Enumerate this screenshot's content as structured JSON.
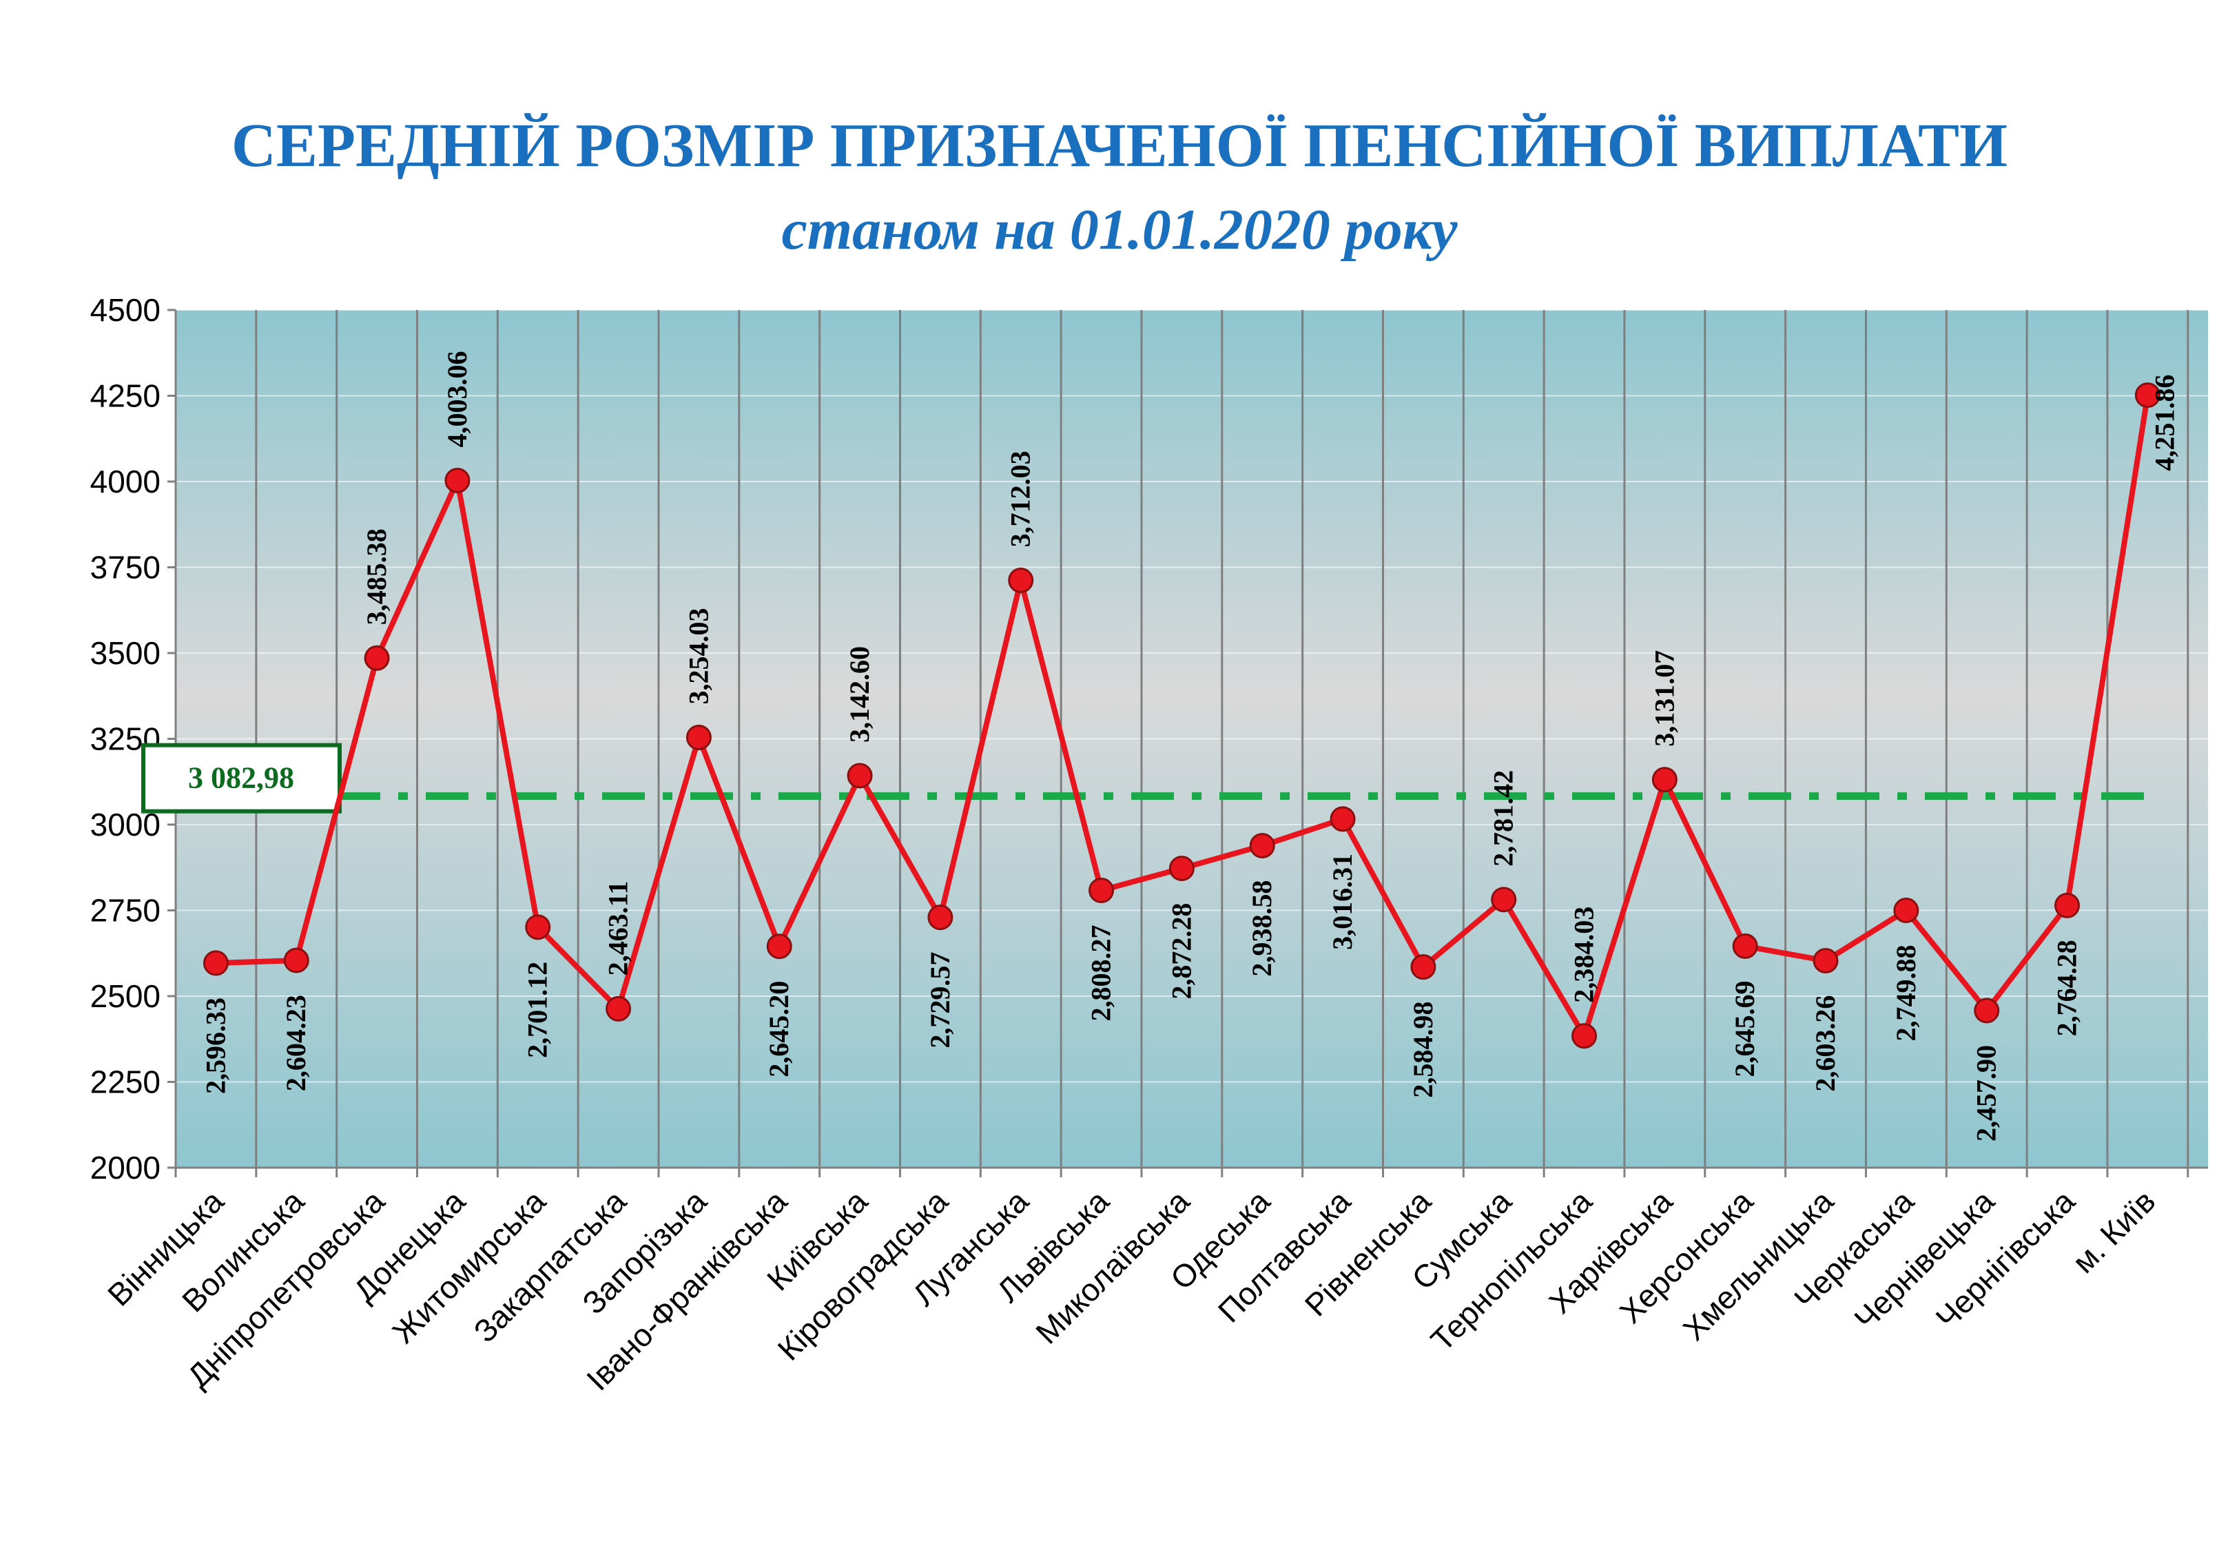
{
  "title": "СЕРЕДНІЙ РОЗМІР ПРИЗНАЧЕНОЇ ПЕНСІЙНОЇ ВИПЛАТИ",
  "subtitle": "станом на 01.01.2020 року",
  "colors": {
    "title": "#1a6fbf",
    "line": "#e8141e",
    "marker": "#e8141e",
    "average": "#1aa84a",
    "average_text": "#0b6b1f",
    "plot_top": "#8ec6d0",
    "plot_middle": "#d9d9d9",
    "plot_bottom": "#8ec6d0",
    "grid": "#7f7f7f"
  },
  "chart_data": {
    "type": "line",
    "title": "СЕРЕДНІЙ РОЗМІР ПРИЗНАЧЕНОЇ ПЕНСІЙНОЇ ВИПЛАТИ",
    "subtitle": "станом на 01.01.2020 року",
    "xlabel": "",
    "ylabel": "",
    "ylim": [
      2000,
      4500
    ],
    "yticks": [
      2000,
      2250,
      2500,
      2750,
      3000,
      3250,
      3500,
      3750,
      4000,
      4250,
      4500
    ],
    "grid": true,
    "legend": "none",
    "categories": [
      "Вінницька",
      "Волинська",
      "Дніпропетровська",
      "Донецька",
      "Житомирська",
      "Закарпатська",
      "Запорізька",
      "Івано-Франківська",
      "Київська",
      "Кіровоградська",
      "Луганська",
      "Львівська",
      "Миколаївська",
      "Одеська",
      "Полтавська",
      "Рівненська",
      "Сумська",
      "Тернопільська",
      "Харківська",
      "Херсонська",
      "Хмельницька",
      "Черкаська",
      "Чернівецька",
      "Чернігівська",
      "м. Київ"
    ],
    "series": [
      {
        "values": [
          2596.33,
          2604.23,
          3485.38,
          4003.06,
          2701.12,
          2463.11,
          3254.03,
          2645.2,
          3142.6,
          2729.57,
          3712.03,
          2808.27,
          2872.28,
          2938.58,
          3016.31,
          2584.98,
          2781.42,
          2384.03,
          3131.07,
          2645.69,
          2603.26,
          2749.88,
          2457.9,
          2764.28,
          4251.86
        ],
        "labels": [
          "2,596.33",
          "2,604.23",
          "3,485.38",
          "4,003.06",
          "2,701.12",
          "2,463.11",
          "3,254.03",
          "2,645.20",
          "3,142.60",
          "2,729.57",
          "3,712.03",
          "2,808.27",
          "2,872.28",
          "2,938.58",
          "3,016.31",
          "2,584.98",
          "2,781.42",
          "2,384.03",
          "3,131.07",
          "2,645.69",
          "2,603.26",
          "2,749.88",
          "2,457.90",
          "2,764.28",
          "4,251.86"
        ],
        "label_position": [
          "below",
          "below",
          "above",
          "above",
          "below",
          "above",
          "above",
          "below",
          "above",
          "below",
          "above",
          "below",
          "below",
          "below",
          "below",
          "below",
          "above",
          "above",
          "above",
          "below",
          "below",
          "below",
          "below",
          "below",
          "right"
        ]
      }
    ],
    "average": {
      "value": 3082.98,
      "label": "3 082,98"
    }
  }
}
